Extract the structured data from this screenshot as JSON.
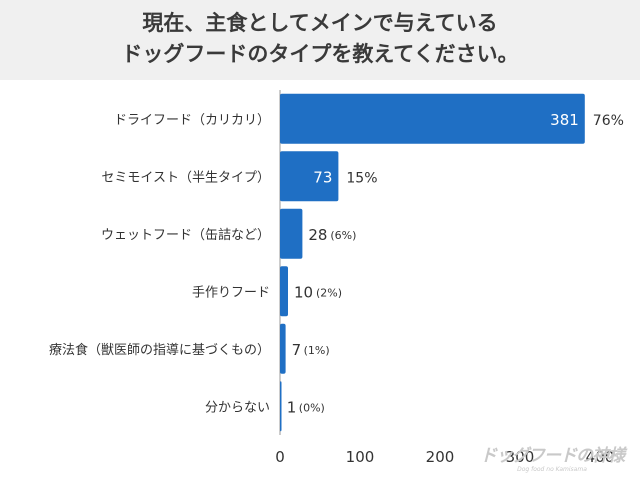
{
  "header": {
    "title_line1": "現在、主食としてメインで与えている",
    "title_line2": "ドッグフードのタイプを教えてください。"
  },
  "logo": {
    "text": "ドッグフードの神様",
    "sub": "Dog food no Kamisama"
  },
  "colors": {
    "bar": "#1f6fc4",
    "title_band": "#f0f0f0",
    "text": "#333333"
  },
  "chart_data": {
    "type": "bar",
    "orientation": "horizontal",
    "categories": [
      "ドライフード（カリカリ）",
      "セミモイスト（半生タイプ）",
      "ウェットフード（缶詰など）",
      "手作りフード",
      "療法食（獣医師の指導に基づくもの）",
      "分からない"
    ],
    "values": [
      381,
      73,
      28,
      10,
      7,
      1
    ],
    "percent_labels": [
      "76%",
      "15%",
      "(6%)",
      "(2%)",
      "(1%)",
      "(0%)"
    ],
    "xlim": [
      0,
      400
    ],
    "xticks": [
      0,
      100,
      200,
      300,
      400
    ],
    "grid": false,
    "legend": "none"
  }
}
